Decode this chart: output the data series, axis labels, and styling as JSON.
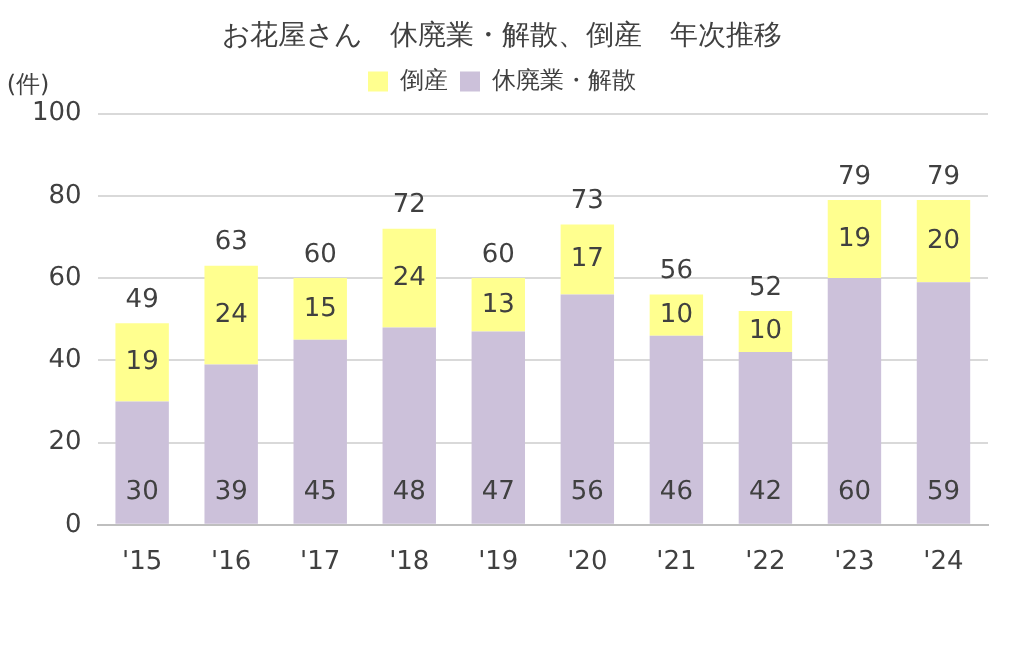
{
  "chart_data": {
    "type": "bar",
    "title": "お花屋さん　休廃業・解散、倒産　年次推移",
    "ylabel": "(件)",
    "categories": [
      "'15",
      "'16",
      "'17",
      "'18",
      "'19",
      "'20",
      "'21",
      "'22",
      "'23",
      "'24"
    ],
    "series": [
      {
        "name": "休廃業・解散",
        "color": "#ccc1da",
        "values": [
          30,
          39,
          45,
          48,
          47,
          56,
          46,
          42,
          60,
          59
        ]
      },
      {
        "name": "倒産",
        "color": "#ffff8f",
        "values": [
          19,
          24,
          15,
          24,
          13,
          17,
          10,
          10,
          19,
          20
        ]
      }
    ],
    "stacked": true,
    "totals": [
      "49",
      "63",
      "60",
      "72",
      "60",
      "73",
      "56",
      "52",
      "79",
      "79"
    ],
    "data_labels": true,
    "ylim": [
      0,
      100
    ],
    "yticks": [
      0,
      20,
      40,
      60,
      80,
      100
    ],
    "grid": "y",
    "legend": "top"
  }
}
